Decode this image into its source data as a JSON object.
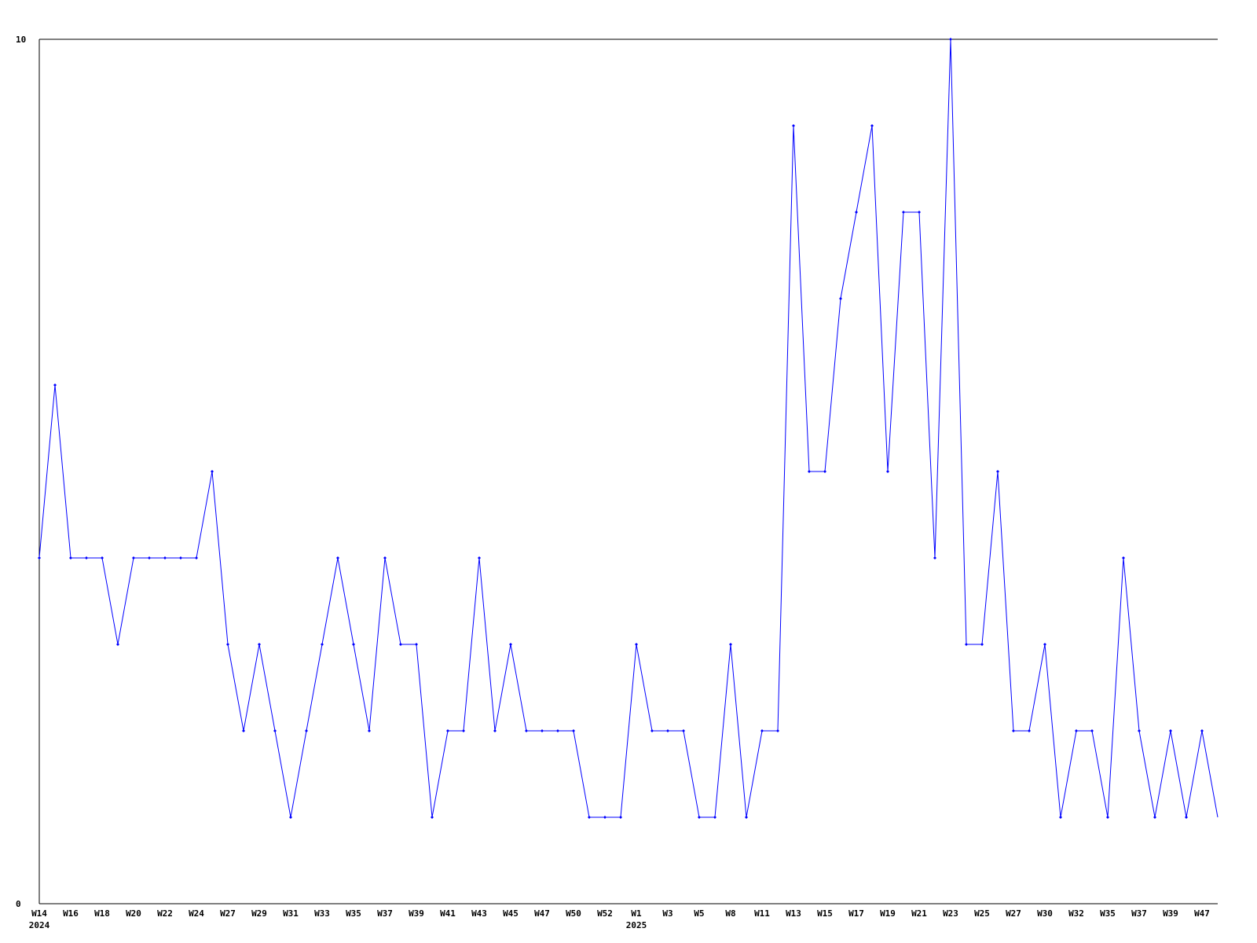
{
  "chart_data": {
    "type": "line",
    "title": "",
    "xlabel": "",
    "ylabel": "",
    "ylim": [
      0,
      10
    ],
    "y_ticks": [
      "0",
      "10"
    ],
    "grid": false,
    "line_color": "#0000ff",
    "x": [
      "W14",
      "",
      "W16",
      "",
      "W18",
      "",
      "W20",
      "",
      "W22",
      "",
      "W24",
      "",
      "W27",
      "",
      "W29",
      "",
      "W31",
      "",
      "W33",
      "",
      "W35",
      "",
      "W37",
      "",
      "W39",
      "",
      "W41",
      "",
      "W43",
      "",
      "W45",
      "",
      "W47",
      "",
      "W50",
      "",
      "W52",
      "",
      "W1",
      "",
      "W3",
      "",
      "W5",
      "",
      "W8",
      "",
      "W11",
      "",
      "W13",
      "",
      "W15",
      "",
      "W17",
      "",
      "W19",
      "",
      "W21",
      "",
      "W23",
      "",
      "W25",
      "",
      "W27",
      "",
      "W30",
      "",
      "W32",
      "",
      "W35",
      "",
      "W37",
      "",
      "W39",
      "",
      "W47",
      ""
    ],
    "year_labels": [
      {
        "index": 0,
        "label": "2024"
      },
      {
        "index": 38,
        "label": "2025"
      }
    ],
    "values": [
      4,
      6,
      4,
      4,
      4,
      3,
      4,
      4,
      4,
      4,
      4,
      5,
      3,
      2,
      3,
      2,
      1,
      2,
      3,
      4,
      3,
      2,
      4,
      3,
      3,
      1,
      2,
      2,
      4,
      2,
      3,
      2,
      2,
      2,
      2,
      1,
      1,
      1,
      3,
      2,
      2,
      2,
      1,
      1,
      3,
      1,
      2,
      2,
      9,
      5,
      5,
      7,
      8,
      9,
      5,
      8,
      8,
      4,
      10,
      3,
      3,
      5,
      2,
      2,
      3,
      1,
      2,
      2,
      1,
      4,
      2,
      1,
      2,
      1,
      2,
      1
    ]
  }
}
